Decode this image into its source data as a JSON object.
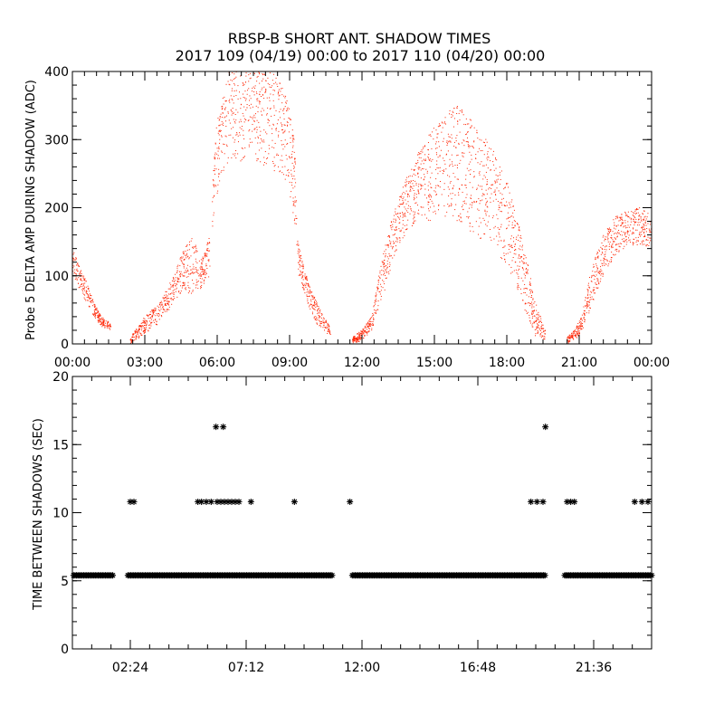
{
  "chart_data": [
    {
      "type": "scatter",
      "title_line1": "RBSP-B SHORT ANT. SHADOW TIMES",
      "title_line2": "2017 109 (04/19) 00:00 to 2017 110 (04/20) 00:00",
      "ylabel": "Probe 5 DELTA AMP DURING SHADOW (ADC)",
      "xlabel": "",
      "xlim": [
        0,
        24
      ],
      "ylim": [
        0,
        400
      ],
      "x_ticks": [
        0,
        3,
        6,
        9,
        12,
        15,
        18,
        21,
        24
      ],
      "x_tick_labels": [
        "00:00",
        "03:00",
        "06:00",
        "09:00",
        "12:00",
        "15:00",
        "18:00",
        "21:00",
        "00:00"
      ],
      "y_ticks": [
        0,
        100,
        200,
        300,
        400
      ],
      "y_tick_labels": [
        "0",
        "100",
        "200",
        "300",
        "400"
      ],
      "color": "#ff2200",
      "series_envelope": [
        {
          "name": "pass-1",
          "x": [
            0.0,
            0.3,
            0.6,
            0.9,
            1.2,
            1.6
          ],
          "y_low": [
            100,
            80,
            60,
            40,
            25,
            20
          ],
          "y_high": [
            140,
            115,
            90,
            60,
            40,
            30
          ]
        },
        {
          "name": "pass-2",
          "x": [
            2.4,
            3.0,
            3.6,
            4.2,
            4.6,
            5.0,
            5.3,
            5.7
          ],
          "y_low": [
            0,
            15,
            30,
            60,
            80,
            70,
            80,
            100
          ],
          "y_high": [
            10,
            40,
            60,
            100,
            140,
            160,
            120,
            160
          ]
        },
        {
          "name": "pass-3",
          "x": [
            5.8,
            6.0,
            6.5,
            7.0,
            7.5,
            8.0,
            8.5,
            9.0,
            9.3
          ],
          "y_low": [
            160,
            220,
            250,
            260,
            270,
            260,
            250,
            220,
            160
          ],
          "y_high": [
            250,
            330,
            400,
            410,
            410,
            410,
            400,
            350,
            270
          ]
        },
        {
          "name": "pass-4",
          "x": [
            9.3,
            9.6,
            9.9,
            10.2,
            10.5,
            10.7
          ],
          "y_low": [
            110,
            70,
            45,
            25,
            15,
            10
          ],
          "y_high": [
            160,
            110,
            80,
            55,
            35,
            25
          ]
        },
        {
          "name": "pass-5",
          "x": [
            11.6,
            12.0,
            12.4,
            12.8,
            13.2,
            13.6,
            14.0,
            14.5,
            15.0,
            15.5,
            16.0,
            16.5,
            17.0,
            17.5,
            18.0,
            18.4,
            18.8,
            19.2,
            19.6
          ],
          "y_low": [
            0,
            5,
            20,
            60,
            110,
            150,
            170,
            180,
            180,
            175,
            170,
            165,
            150,
            130,
            110,
            80,
            40,
            10,
            5
          ],
          "y_high": [
            10,
            20,
            40,
            120,
            180,
            220,
            260,
            290,
            320,
            340,
            350,
            330,
            310,
            280,
            240,
            190,
            130,
            60,
            20
          ]
        },
        {
          "name": "pass-6",
          "x": [
            20.5,
            20.8,
            21.1,
            21.5,
            22.0,
            22.5,
            23.0,
            23.5,
            24.0
          ],
          "y_low": [
            0,
            5,
            15,
            50,
            100,
            130,
            140,
            145,
            140
          ],
          "y_high": [
            10,
            20,
            40,
            110,
            160,
            190,
            195,
            200,
            190
          ]
        }
      ]
    },
    {
      "type": "scatter",
      "title": "",
      "ylabel": "TIME BETWEEN SHADOWS (SEC)",
      "xlabel": "",
      "xlim": [
        0,
        24
      ],
      "ylim": [
        0,
        20
      ],
      "x_ticks": [
        2.4,
        7.2,
        12.0,
        16.8,
        21.6
      ],
      "x_tick_labels": [
        "02:24",
        "07:12",
        "12:00",
        "16:48",
        "21:36"
      ],
      "y_ticks": [
        0,
        5,
        10,
        15,
        20
      ],
      "y_tick_labels": [
        "0",
        "5",
        "10",
        "15",
        "20"
      ],
      "marker": "asterisk",
      "color": "#000000",
      "baseline": {
        "y": 5.4,
        "x_ranges": [
          [
            0.05,
            1.7
          ],
          [
            2.3,
            10.8
          ],
          [
            11.6,
            19.6
          ],
          [
            20.4,
            24.0
          ]
        ]
      },
      "points": [
        {
          "x": 2.4,
          "y": 10.8
        },
        {
          "x": 2.55,
          "y": 10.8
        },
        {
          "x": 5.2,
          "y": 10.8
        },
        {
          "x": 5.35,
          "y": 10.8
        },
        {
          "x": 5.55,
          "y": 10.8
        },
        {
          "x": 5.75,
          "y": 10.8
        },
        {
          "x": 6.0,
          "y": 10.8
        },
        {
          "x": 6.15,
          "y": 10.8
        },
        {
          "x": 6.3,
          "y": 10.8
        },
        {
          "x": 6.45,
          "y": 10.8
        },
        {
          "x": 6.6,
          "y": 10.8
        },
        {
          "x": 6.75,
          "y": 10.8
        },
        {
          "x": 6.9,
          "y": 10.8
        },
        {
          "x": 5.95,
          "y": 16.3
        },
        {
          "x": 6.25,
          "y": 16.3
        },
        {
          "x": 7.4,
          "y": 10.8
        },
        {
          "x": 9.2,
          "y": 10.8
        },
        {
          "x": 11.5,
          "y": 10.8
        },
        {
          "x": 19.0,
          "y": 10.8
        },
        {
          "x": 19.25,
          "y": 10.8
        },
        {
          "x": 19.5,
          "y": 10.8
        },
        {
          "x": 19.6,
          "y": 16.3
        },
        {
          "x": 20.5,
          "y": 10.8
        },
        {
          "x": 20.65,
          "y": 10.8
        },
        {
          "x": 20.8,
          "y": 10.8
        },
        {
          "x": 23.3,
          "y": 10.8
        },
        {
          "x": 23.6,
          "y": 10.8
        },
        {
          "x": 23.85,
          "y": 10.8
        }
      ]
    }
  ]
}
